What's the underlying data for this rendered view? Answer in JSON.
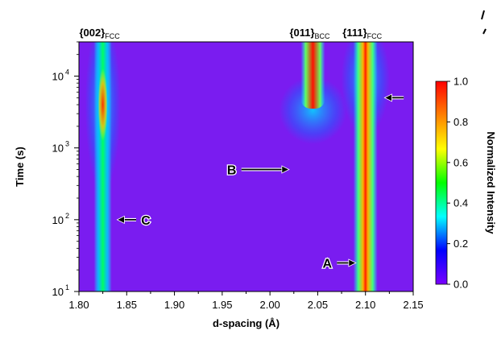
{
  "chart_data": {
    "type": "heatmap",
    "xlabel": "d-spacing (Å)",
    "ylabel": "Time (s)",
    "xlim": [
      1.8,
      2.15
    ],
    "ylim": [
      10,
      30000
    ],
    "y_scale": "log",
    "x_ticks": [
      "1.80",
      "1.85",
      "1.90",
      "1.95",
      "2.00",
      "2.05",
      "2.10",
      "2.15"
    ],
    "y_ticks": [
      {
        "base": "10",
        "exp": "1",
        "value": 10
      },
      {
        "base": "10",
        "exp": "2",
        "value": 100
      },
      {
        "base": "10",
        "exp": "3",
        "value": 1000
      },
      {
        "base": "10",
        "exp": "4",
        "value": 10000
      }
    ],
    "colorbar": {
      "label": "Normalized Intensity",
      "range": [
        0.0,
        1.0
      ],
      "ticks": [
        "0.0",
        "0.2",
        "0.4",
        "0.6",
        "0.8",
        "1.0"
      ],
      "colormap": [
        "#7a00ff",
        "#0000ff",
        "#00ffff",
        "#00ff00",
        "#ffff00",
        "#ff8000",
        "#ff0000"
      ]
    },
    "background_color": "#7a1cf0",
    "peaks": [
      {
        "label": "{002}",
        "sub": "FCC",
        "d": 1.825,
        "t_start": 10,
        "t_end": 30000,
        "max_intensity": 1.0
      },
      {
        "label": "{011}",
        "sub": "BCC",
        "d": 2.045,
        "t_start": 2000,
        "t_end": 30000,
        "max_intensity": 1.0
      },
      {
        "label": "{111}",
        "sub": "FCC",
        "d": 2.1,
        "t_start": 10,
        "t_end": 30000,
        "max_intensity": 1.0
      }
    ],
    "annotations": [
      {
        "text": "A",
        "d": 2.06,
        "t": 25,
        "arrow_to_d": 2.09,
        "arrow_to_t": 25
      },
      {
        "text": "B",
        "d": 1.96,
        "t": 500,
        "arrow_to_d": 2.02,
        "arrow_to_t": 500
      },
      {
        "text": "C",
        "d": 1.87,
        "t": 100,
        "arrow_to_d": 1.84,
        "arrow_to_t": 100
      },
      {
        "text": "",
        "d": 2.14,
        "t": 5000,
        "arrow_to_d": 2.12,
        "arrow_to_t": 5000
      }
    ]
  }
}
